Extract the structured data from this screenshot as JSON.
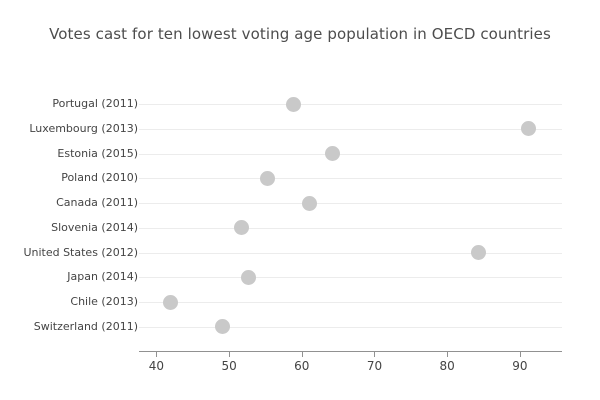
{
  "chart_data": {
    "type": "scatter",
    "subtype": "horizontal-dot-plot",
    "title": "Votes cast for ten lowest voting age population in OECD countries",
    "categories": [
      "Portugal (2011)",
      "Luxembourg (2013)",
      "Estonia (2015)",
      "Poland (2010)",
      "Canada (2011)",
      "Slovenia (2014)",
      "United States (2012)",
      "Japan (2014)",
      "Chile (2013)",
      "Switzerland (2011)"
    ],
    "values": [
      58.9,
      91.2,
      64.2,
      55.3,
      61.1,
      51.7,
      84.3,
      52.7,
      42.0,
      49.1
    ],
    "xlabel": "",
    "ylabel": "",
    "xticks": [
      40,
      50,
      60,
      70,
      80,
      90
    ],
    "xlim": [
      37.6,
      95.8
    ],
    "grid": "horizontal",
    "legend": "none",
    "colors": {
      "marker": "#c9c9c9",
      "title_text": "#4d4d4d",
      "label_text": "#444444",
      "axis_line": "#919191",
      "gridline": "#ececec",
      "background": "#ffffff"
    }
  }
}
